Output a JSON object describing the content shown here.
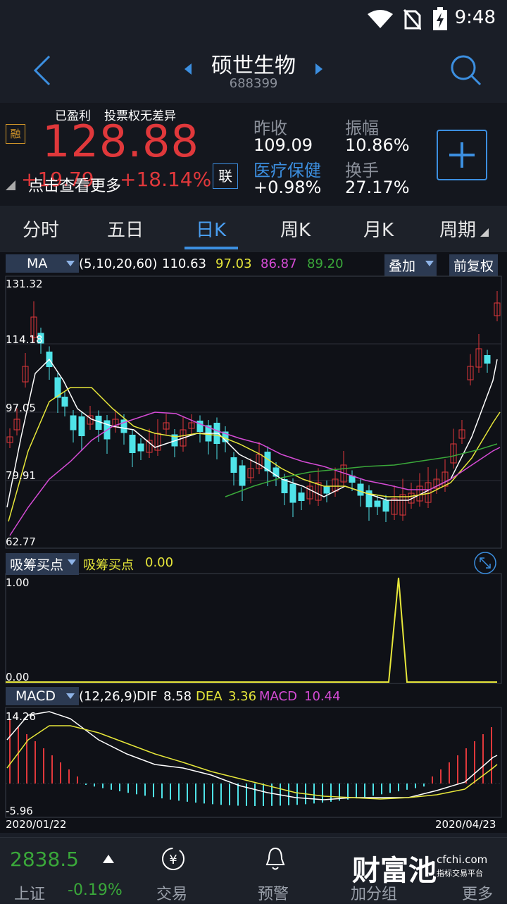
{
  "status": {
    "time": "9:48"
  },
  "header": {
    "name": "硕世生物",
    "code": "688399"
  },
  "quote": {
    "tag1": "已盈利",
    "tag2": "投票权无差异",
    "badge": "融",
    "price": "128.88",
    "change": "+19.79",
    "change_pct": "+18.14%",
    "tap_hint": "点击查看更多",
    "lian": "联",
    "prev_close_label": "昨收",
    "prev_close": "109.09",
    "amplitude_label": "振幅",
    "amplitude": "10.86%",
    "sector": "医疗保健",
    "sector_change": "+0.98%",
    "turnover_label": "换手",
    "turnover": "27.17%"
  },
  "tabs": [
    "分时",
    "五日",
    "日K",
    "周K",
    "月K",
    "周期"
  ],
  "ma_bar": {
    "select": "MA",
    "params": "(5,10,20,60)",
    "v1": "110.63",
    "v2": "97.03",
    "v3": "86.87",
    "v4": "89.20",
    "overlay": "叠加",
    "adjust": "前复权"
  },
  "price_axis": [
    "131.32",
    "114.18",
    "97.05",
    "79.91",
    "62.77"
  ],
  "indicator": {
    "select": "吸筹买点",
    "label": "吸筹买点",
    "value": "0.00",
    "axis_top": "1.00",
    "axis_bottom": "0.00"
  },
  "macd_bar": {
    "select": "MACD",
    "params": "(12,26,9)",
    "dif_label": "DIF",
    "dif": "8.58",
    "dea_label": "DEA",
    "dea": "3.36",
    "macd_label": "MACD",
    "macd": "10.44",
    "axis_top": "14.26",
    "axis_bottom": "-5.96"
  },
  "dates": {
    "start": "2020/01/22",
    "end": "2020/04/23"
  },
  "bottom": {
    "index_value": "2838.5",
    "index_name": "上证",
    "index_change": "-0.19%",
    "trade": "交易",
    "alert": "预警",
    "add": "加分组",
    "more": "更多",
    "watermark": "财富池",
    "watermark_sub": "cfchi.com",
    "watermark_sub2": "指标交易平台"
  },
  "colors": {
    "up": "#e0383b",
    "down": "#4fe3e8",
    "ma5": "#ffffff",
    "ma10": "#e6e63a",
    "ma20": "#d54bd5",
    "ma60": "#3aa83a",
    "accent": "#3c8fe0"
  }
}
